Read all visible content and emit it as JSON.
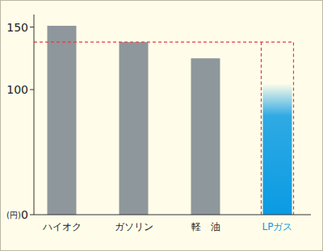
{
  "chart_data": {
    "type": "bar",
    "categories": [
      "ハイオク",
      "ガソリン",
      "軽　油",
      "LPガス"
    ],
    "values": [
      151,
      138,
      125,
      105
    ],
    "colors": [
      "#8e979b",
      "#8e979b",
      "#8e979b",
      "#0a9be3"
    ],
    "ylim": [
      0,
      160
    ],
    "yticks": [
      0,
      100,
      150
    ],
    "y_label": "(円)",
    "reference_line": 138,
    "grid": false
  }
}
